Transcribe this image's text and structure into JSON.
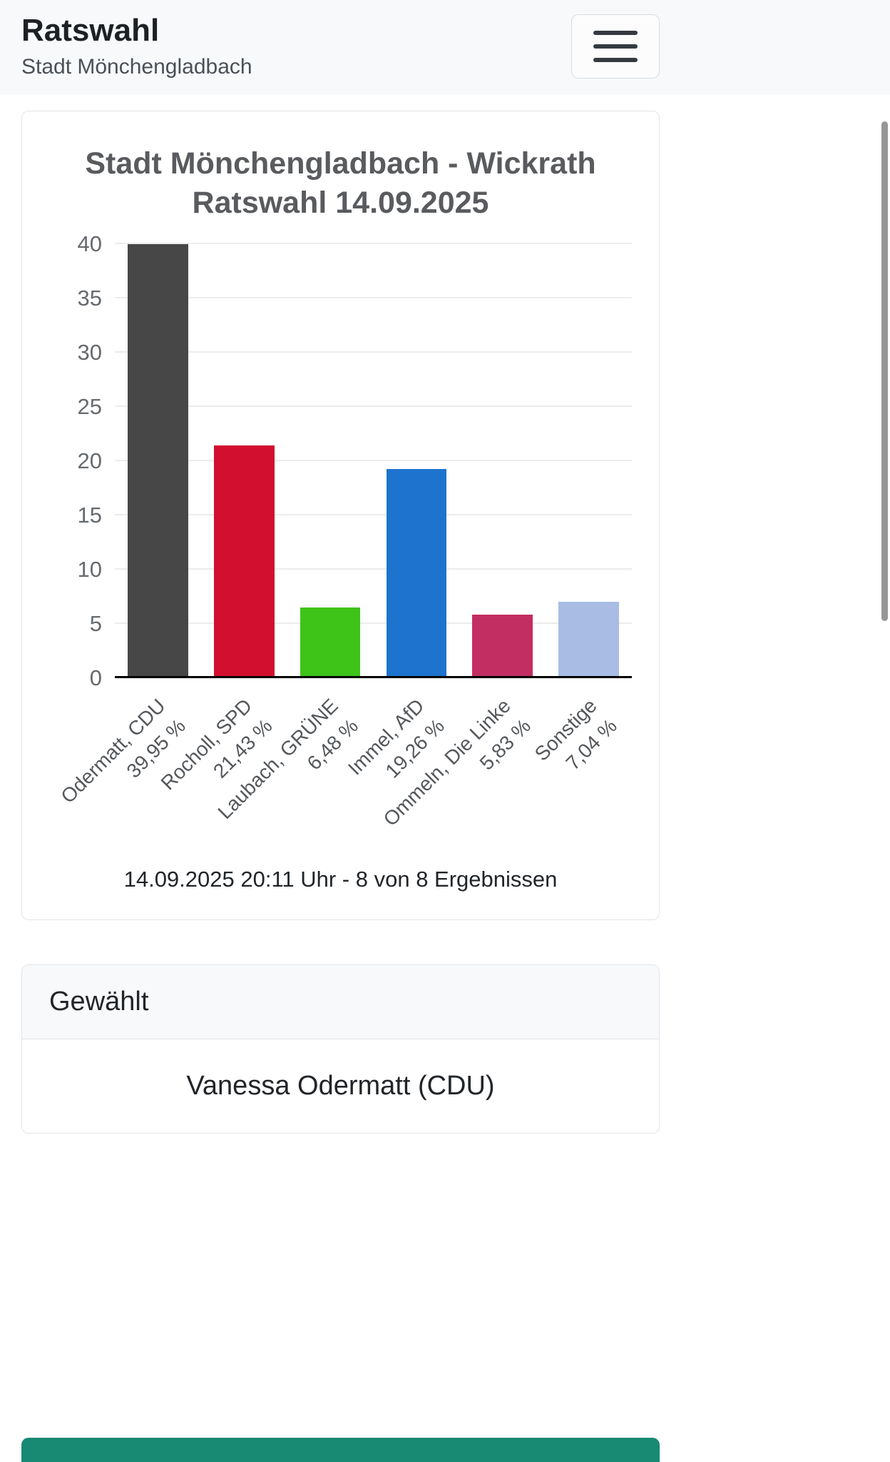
{
  "header": {
    "title": "Ratswahl",
    "subtitle": "Stadt Mönchengladbach",
    "menu_icon": "hamburger-icon"
  },
  "chart_data": {
    "type": "bar",
    "title_lines": [
      "Stadt Mönchengladbach - Wickrath",
      "Ratswahl 14.09.2025"
    ],
    "categories": [
      "Odermatt, CDU",
      "Rocholl, SPD",
      "Laubach, GRÜNE",
      "Immel, AfD",
      "Ommeln, Die Linke",
      "Sonstige"
    ],
    "labels_percent": [
      "39,95 %",
      "21,43 %",
      "6,48 %",
      "19,26 %",
      "5,83 %",
      "7,04 %"
    ],
    "values": [
      39.95,
      21.43,
      6.48,
      19.26,
      5.83,
      7.04
    ],
    "bar_colors": [
      "#474747",
      "#d20f2f",
      "#3ec318",
      "#1e73cf",
      "#c22e62",
      "#a9bce4"
    ],
    "ylim": [
      0,
      40
    ],
    "yticks": [
      0,
      5,
      10,
      15,
      20,
      25,
      30,
      35,
      40
    ],
    "grid": true,
    "legend": "none",
    "xlabel": "",
    "ylabel": "",
    "caption": "14.09.2025 20:11 Uhr - 8 von 8 Ergebnissen"
  },
  "elected": {
    "header": "Gewählt",
    "value": "Vanessa Odermatt (CDU)"
  },
  "next_section": {
    "color": "#188973"
  }
}
